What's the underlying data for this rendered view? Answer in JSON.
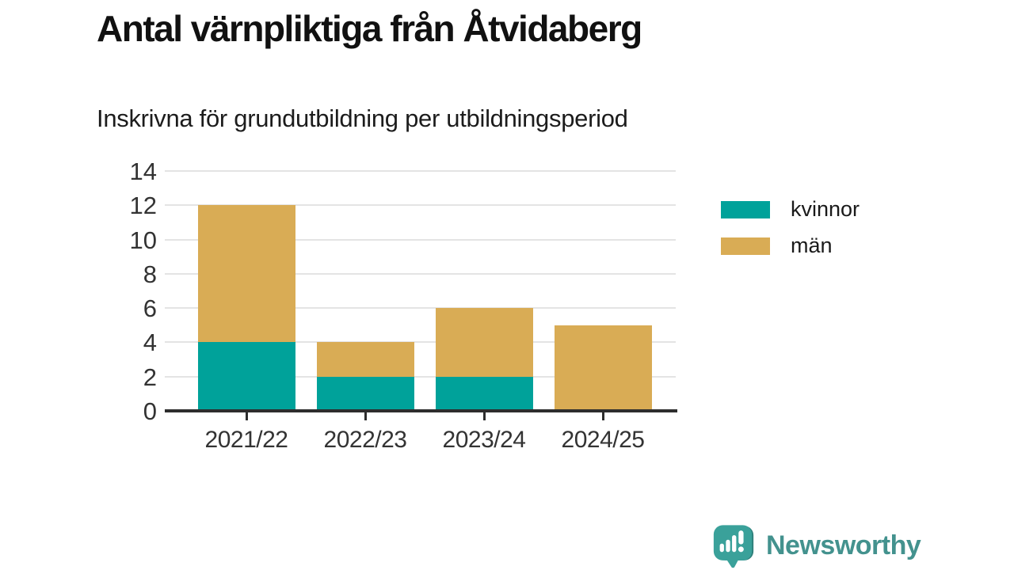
{
  "title": "Antal värnpliktiga från Åtvidaberg",
  "subtitle": "Inskrivna för grundutbildning per utbildningsperiod",
  "footer": {
    "brand": "Newsworthy"
  },
  "colors": {
    "kvinnor": "#00a29a",
    "man": "#d9ac55",
    "axis": "#2d2d2d",
    "grid": "#e4e4e4",
    "text": "#333333",
    "brand": "#43928e"
  },
  "legend": {
    "items": [
      {
        "label": "kvinnor",
        "color": "#00a29a"
      },
      {
        "label": "män",
        "color": "#d9ac55"
      }
    ]
  },
  "chart_data": {
    "type": "bar",
    "stacked": true,
    "title": "Antal värnpliktiga från Åtvidaberg",
    "subtitle": "Inskrivna för grundutbildning per utbildningsperiod",
    "categories": [
      "2021/22",
      "2022/23",
      "2023/24",
      "2024/25"
    ],
    "series": [
      {
        "name": "kvinnor",
        "color": "#00a29a",
        "values": [
          4,
          2,
          2,
          0
        ]
      },
      {
        "name": "män",
        "color": "#d9ac55",
        "values": [
          8,
          2,
          4,
          5
        ]
      }
    ],
    "totals": [
      12,
      4,
      6,
      5
    ],
    "xlabel": "",
    "ylabel": "",
    "ylim": [
      0,
      14
    ],
    "yticks": [
      0,
      2,
      4,
      6,
      8,
      10,
      12,
      14
    ],
    "grid": true,
    "legend_position": "right"
  }
}
